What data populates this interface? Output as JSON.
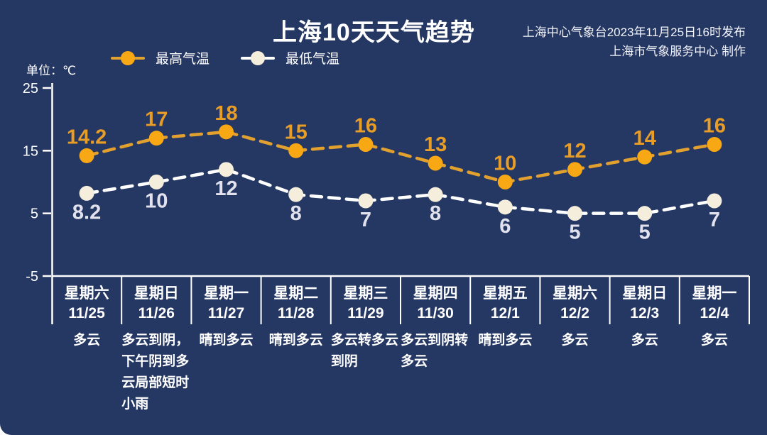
{
  "title": "上海10天天气趋势",
  "source": {
    "line1": "上海中心气象台2023年11月25日16时发布",
    "line2": "上海市气象服务中心 制作"
  },
  "unit_label": "单位：℃",
  "legend": {
    "high_label": "最高气温",
    "low_label": "最低气温"
  },
  "colors": {
    "background": "#253763",
    "axis": "#ffffff",
    "high_line": "#e2a02f",
    "high_marker": "#f8a815",
    "high_label": "#e89d26",
    "low_line": "#ffffff",
    "low_marker": "#f6eedc",
    "low_label": "#e2e2ee",
    "text": "#ffffff"
  },
  "chart_data": {
    "type": "line",
    "title": "上海10天天气趋势",
    "ylabel": "单位：℃",
    "ylim": [
      -5,
      25
    ],
    "yticks": [
      25,
      15,
      5,
      -5
    ],
    "grid": false,
    "legend_position": "top-left",
    "x": [
      "11/25",
      "11/26",
      "11/27",
      "11/28",
      "11/29",
      "11/30",
      "12/1",
      "12/2",
      "12/3",
      "12/4"
    ],
    "series": [
      {
        "name": "最高气温",
        "values": [
          14.2,
          17,
          18,
          15,
          16,
          13,
          10,
          12,
          14,
          16
        ],
        "labels": [
          "14.2",
          "17",
          "18",
          "15",
          "16",
          "13",
          "10",
          "12",
          "14",
          "16"
        ],
        "style": "dashed-line-with-dots"
      },
      {
        "name": "最低气温",
        "values": [
          8.2,
          10,
          12,
          8,
          7,
          8,
          6,
          5,
          5,
          7
        ],
        "labels": [
          "8.2",
          "10",
          "12",
          "8",
          "7",
          "8",
          "6",
          "5",
          "5",
          "7"
        ],
        "style": "dashed-line-with-dots"
      }
    ]
  },
  "days": [
    {
      "weekday": "星期六",
      "date": "11/25",
      "weather": "多云"
    },
    {
      "weekday": "星期日",
      "date": "11/26",
      "weather": "多云到阴，下午阴到多云局部短时小雨"
    },
    {
      "weekday": "星期一",
      "date": "11/27",
      "weather": "晴到多云"
    },
    {
      "weekday": "星期二",
      "date": "11/28",
      "weather": "晴到多云"
    },
    {
      "weekday": "星期三",
      "date": "11/29",
      "weather": "多云转多云到阴"
    },
    {
      "weekday": "星期四",
      "date": "11/30",
      "weather": "多云到阴转多云"
    },
    {
      "weekday": "星期五",
      "date": "12/1",
      "weather": "晴到多云"
    },
    {
      "weekday": "星期六",
      "date": "12/2",
      "weather": "多云"
    },
    {
      "weekday": "星期日",
      "date": "12/3",
      "weather": "多云"
    },
    {
      "weekday": "星期一",
      "date": "12/4",
      "weather": "多云"
    }
  ]
}
